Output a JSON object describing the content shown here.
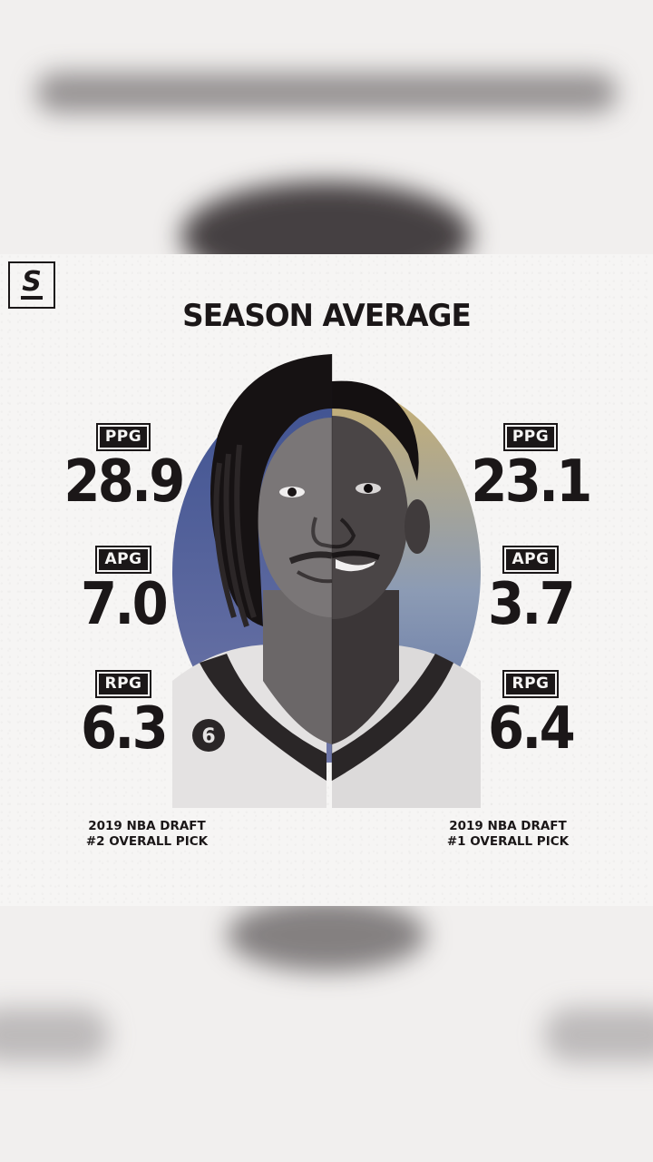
{
  "brand": {
    "logo_letter": "S"
  },
  "title": "SEASON AVERAGE",
  "left_player": {
    "stats": [
      {
        "label": "PPG",
        "value": "28.9"
      },
      {
        "label": "APG",
        "value": "7.0"
      },
      {
        "label": "RPG",
        "value": "6.3"
      }
    ],
    "draft_line1": "2019 NBA DRAFT",
    "draft_line2": "#2 OVERALL PICK",
    "jersey_number": "6"
  },
  "right_player": {
    "stats": [
      {
        "label": "PPG",
        "value": "23.1"
      },
      {
        "label": "APG",
        "value": "3.7"
      },
      {
        "label": "RPG",
        "value": "6.4"
      }
    ],
    "draft_line1": "2019 NBA DRAFT",
    "draft_line2": "#1 OVERALL PICK"
  },
  "colors": {
    "ink": "#1b1718",
    "paper": "#f6f5f4",
    "circle_left": "#4e5f98",
    "circle_right": "#c7b27a"
  }
}
